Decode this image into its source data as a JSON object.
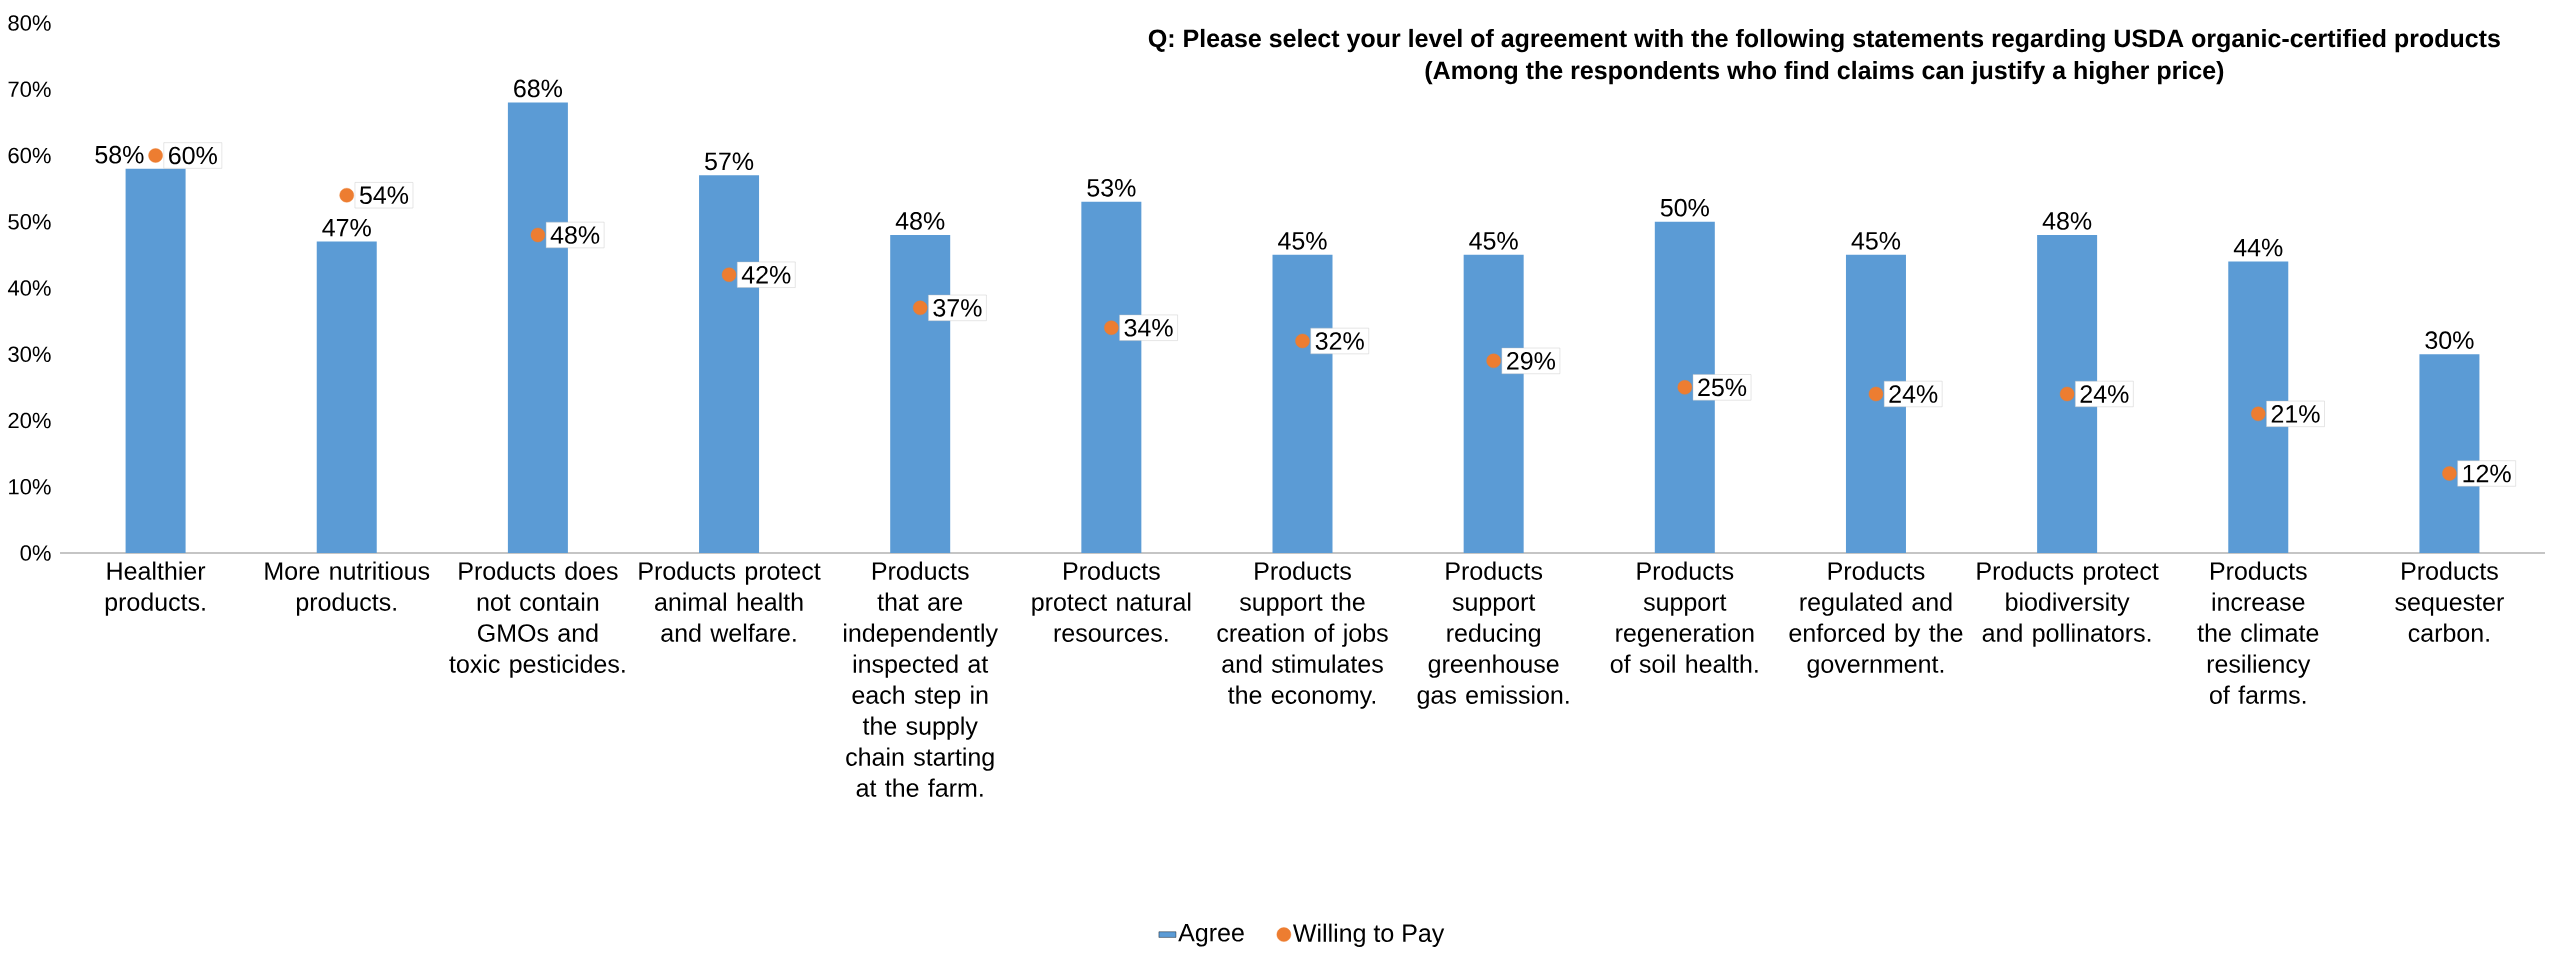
{
  "chart_data": {
    "type": "bar",
    "title": "Q: Please select your level of agreement with the following statements regarding USDA organic-certified products",
    "subtitle": "(Among the respondents who find claims can justify a higher price)",
    "categories": [
      "Healthier products.",
      "More nutritious products.",
      "Products does not contain GMOs and toxic pesticides.",
      "Products protect animal health and welfare.",
      "Products that are independently inspected at each step in the supply chain starting at the farm.",
      "Products protect natural resources.",
      "Products support the creation of jobs and stimulates the economy.",
      "Products support reducing greenhouse gas emission.",
      "Products support regeneration of soil health.",
      "Products regulated and enforced by the government.",
      "Products protect biodiversity and pollinators.",
      "Products increase the climate resiliency of farms.",
      "Products sequester carbon."
    ],
    "series": [
      {
        "name": "Agree",
        "color": "#5b9bd5",
        "values": [
          58,
          47,
          68,
          57,
          48,
          53,
          45,
          45,
          50,
          45,
          48,
          44,
          30
        ],
        "value_labels": [
          "58%",
          "47%",
          "68%",
          "57%",
          "48%",
          "53%",
          "45%",
          "45%",
          "50%",
          "45%",
          "48%",
          "44%",
          "30%"
        ]
      },
      {
        "name": "Willing to Pay",
        "type": "scatter",
        "marker": "circle",
        "color": "#ed7d31",
        "values": [
          60,
          54,
          48,
          42,
          37,
          34,
          32,
          29,
          25,
          24,
          24,
          21,
          12
        ],
        "value_labels": [
          "60%",
          "54%",
          "48%",
          "42%",
          "37%",
          "34%",
          "32%",
          "29%",
          "25%",
          "24%",
          "24%",
          "21%",
          "12%"
        ]
      }
    ],
    "ylim": [
      0,
      80
    ],
    "yticks": [
      {
        "value": 0,
        "label": "0%"
      },
      {
        "value": 10,
        "label": "10%"
      },
      {
        "value": 20,
        "label": "20%"
      },
      {
        "value": 30,
        "label": "30%"
      },
      {
        "value": 40,
        "label": "40%"
      },
      {
        "value": 50,
        "label": "50%"
      },
      {
        "value": 60,
        "label": "60%"
      },
      {
        "value": 70,
        "label": "70%"
      },
      {
        "value": 80,
        "label": "80%"
      }
    ],
    "grid": false,
    "legend": "bottom"
  }
}
